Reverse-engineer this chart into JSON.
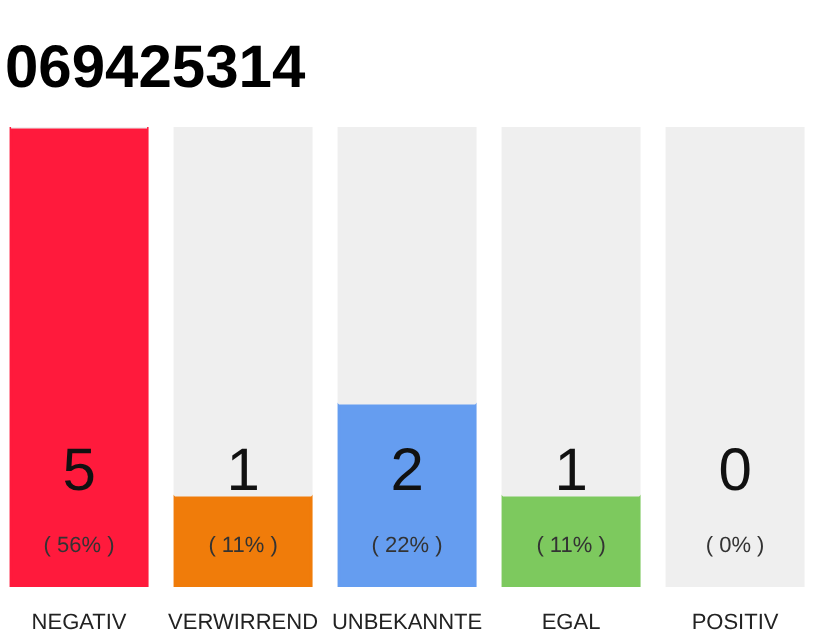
{
  "chart_data": {
    "type": "bar",
    "title": "069425314",
    "categories": [
      "NEGATIV",
      "VERWIRREND",
      "UNBEKANNTE",
      "EGAL",
      "POSITIV"
    ],
    "stacked": true,
    "series": [
      {
        "values": [
          5,
          1,
          2,
          1,
          0
        ],
        "value_labels": [
          "5",
          "1",
          "2",
          "1",
          "0"
        ],
        "colors": [
          "#ff1a3c",
          "#f07c0a",
          "#659df0",
          "#7dc95e",
          "#2ea84a"
        ]
      },
      {
        "values": [
          0,
          4,
          3,
          4,
          5
        ],
        "color": "#efefef"
      }
    ],
    "annotations": [
      "( 56% )",
      "( 11% )",
      "( 22% )",
      "( 11% )",
      "( 0% )"
    ],
    "grid": false
  }
}
